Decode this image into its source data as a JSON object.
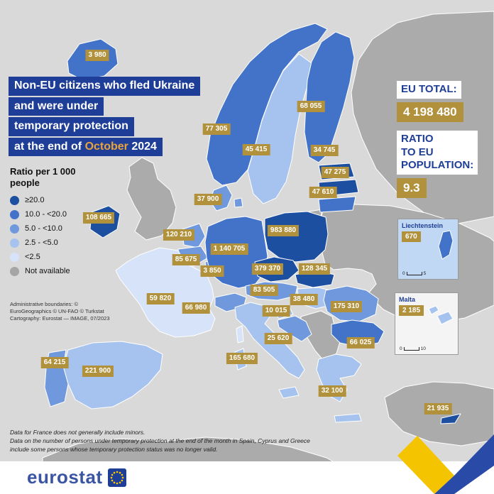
{
  "colors": {
    "navy": "#1e3e97",
    "gold": "#b2913c",
    "accent": "#e8a33d",
    "sea": "#d9d9d9",
    "logoblue": "#3b55a5",
    "ribbonyellow": "#f5c400",
    "ribbonblue": "#2a4aa8",
    "euflag": "#1e3e97",
    "eustars": "#ffcc00"
  },
  "title": {
    "line1": "Non-EU citizens who fled Ukraine",
    "line2": "and were under",
    "line3": "temporary protection",
    "line4_prefix": "at the end of ",
    "line4_highlight": "October",
    "line4_suffix": " 2024"
  },
  "legend": {
    "title": "Ratio per 1 000 people",
    "items": [
      {
        "label": "≥20.0",
        "color": "#1d4fa1"
      },
      {
        "label": "10.0 - <20.0",
        "color": "#4273c8"
      },
      {
        "label": "5.0 - <10.0",
        "color": "#6f98dd"
      },
      {
        "label": "2.5 - <5.0",
        "color": "#a6c2ee"
      },
      {
        "label": "<2.5",
        "color": "#d7e3f8"
      },
      {
        "label": "Not available",
        "color": "#a5a5a5"
      }
    ]
  },
  "attribution": "Administrative boundaries: © EuroGeographics © UN-FAO © Turkstat\nCartography: Eurostat — IMAGE, 07/2023",
  "stats": {
    "eu_total_label": "EU TOTAL:",
    "eu_total_value": "4 198 480",
    "ratio_label": "RATIO\nTO EU\nPOPULATION:",
    "ratio_value": "9.3"
  },
  "insets": {
    "liechtenstein": {
      "name": "Liechtenstein",
      "value": "670",
      "scale_start": "0",
      "scale_end": "5"
    },
    "malta": {
      "name": "Malta",
      "value": "2 185",
      "scale_start": "0",
      "scale_end": "10"
    }
  },
  "map": {
    "class_colors": {
      "gte20": "#1d4fa1",
      "c10to20": "#4273c8",
      "c5to10": "#6f98dd",
      "c2p5to5": "#a6c2ee",
      "lt2p5": "#d7e3f8",
      "na": "#ababab"
    },
    "countries": [
      {
        "id": "IS",
        "value": "3 980",
        "cls": "c10to20"
      },
      {
        "id": "NO",
        "value": "77 305",
        "cls": "c10to20"
      },
      {
        "id": "SE",
        "value": "45 415",
        "cls": "c2p5to5"
      },
      {
        "id": "FI",
        "value": "68 055",
        "cls": "c10to20"
      },
      {
        "id": "EE",
        "value": "34 745",
        "cls": "gte20"
      },
      {
        "id": "LV",
        "value": "47 275",
        "cls": "gte20"
      },
      {
        "id": "LT",
        "value": "47 610",
        "cls": "c10to20"
      },
      {
        "id": "DK",
        "value": "37 900",
        "cls": "c5to10"
      },
      {
        "id": "IE",
        "value": "108 665",
        "cls": "gte20"
      },
      {
        "id": "NL",
        "value": "120 210",
        "cls": "c5to10"
      },
      {
        "id": "BE",
        "value": "85 675",
        "cls": "c5to10"
      },
      {
        "id": "LU",
        "value": "3 850",
        "cls": "c5to10"
      },
      {
        "id": "DE",
        "value": "1 140 705",
        "cls": "c10to20"
      },
      {
        "id": "PL",
        "value": "983 880",
        "cls": "gte20"
      },
      {
        "id": "CZ",
        "value": "379 370",
        "cls": "gte20"
      },
      {
        "id": "SK",
        "value": "128 345",
        "cls": "gte20"
      },
      {
        "id": "AT",
        "value": "83 505",
        "cls": "c5to10"
      },
      {
        "id": "HU",
        "value": "38 480",
        "cls": "c2p5to5"
      },
      {
        "id": "CH",
        "value": "66 980",
        "cls": "c5to10"
      },
      {
        "id": "FR",
        "value": "59 820",
        "cls": "lt2p5"
      },
      {
        "id": "SI",
        "value": "10 015",
        "cls": "c2p5to5"
      },
      {
        "id": "HR",
        "value": "25 620",
        "cls": "c5to10"
      },
      {
        "id": "RO",
        "value": "175 310",
        "cls": "c5to10"
      },
      {
        "id": "BG",
        "value": "66 025",
        "cls": "c10to20"
      },
      {
        "id": "IT",
        "value": "165 680",
        "cls": "c2p5to5"
      },
      {
        "id": "ES",
        "value": "221 900",
        "cls": "c2p5to5"
      },
      {
        "id": "PT",
        "value": "64 215",
        "cls": "c5to10"
      },
      {
        "id": "EL",
        "value": "32 100",
        "cls": "c2p5to5"
      },
      {
        "id": "CY",
        "value": "21 935",
        "cls": "gte20"
      },
      {
        "id": "LI",
        "value": "670",
        "cls": "c10to20"
      },
      {
        "id": "MT",
        "value": "2 185",
        "cls": "c2p5to5"
      }
    ],
    "regions_not_available": [
      "UK",
      "RU",
      "EAST",
      "BALKANS",
      "TR",
      "AF",
      "KALININGRAD"
    ]
  },
  "footnotes": [
    "Data for France does not generally include minors.",
    "Data on the number of persons under temporary protection at the end of the month in Spain, Cyprus and Greece include some persons whose temporary protection status was no longer valid."
  ],
  "footer": {
    "logo_text": "eurostat"
  }
}
